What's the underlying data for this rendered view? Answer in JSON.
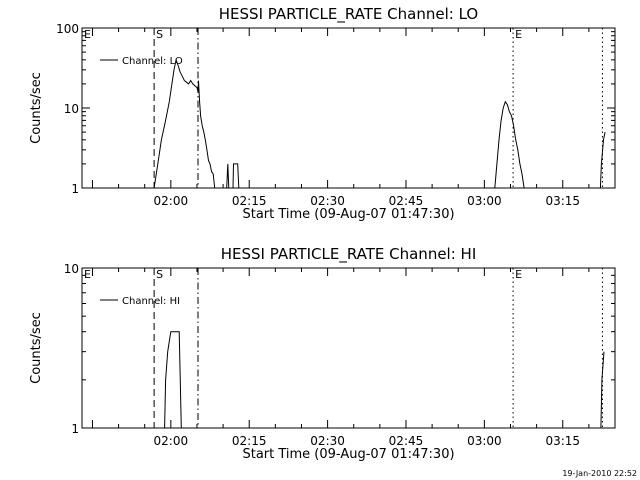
{
  "window": {
    "timestamp": "19-Jan-2010 22:52"
  },
  "chart_data": [
    {
      "type": "line",
      "title": "HESSI PARTICLE_RATE Channel: LO",
      "xlabel": "Start Time (09-Aug-07 01:47:30)",
      "ylabel": "Counts/sec",
      "yscale": "log",
      "ylim": [
        1,
        100
      ],
      "xlim_minutes": [
        -32,
        70
      ],
      "x_ticks": [
        {
          "t": -15,
          "label": "02:00"
        },
        {
          "t": 0,
          "label": "02:15"
        },
        {
          "t": 15,
          "label": "02:30"
        },
        {
          "t": 30,
          "label": "02:45"
        },
        {
          "t": 45,
          "label": "03:00"
        },
        {
          "t": 60,
          "label": "03:15"
        }
      ],
      "y_ticks": [
        {
          "v": 1,
          "label": "1"
        },
        {
          "v": 10,
          "label": "10"
        },
        {
          "v": 100,
          "label": "100"
        }
      ],
      "legend": {
        "position": "top-left",
        "entries": [
          "Channel: LO"
        ]
      },
      "markers": [
        {
          "t": -32,
          "label": "E",
          "style": "solid"
        },
        {
          "t": -18.2,
          "label": "S",
          "style": "dashed"
        },
        {
          "t": -9.8,
          "label": "",
          "style": "dashdot"
        },
        {
          "t": 50.5,
          "label": "E",
          "style": "dotted"
        },
        {
          "t": 67.6,
          "label": "",
          "style": "dotted"
        }
      ],
      "series": [
        {
          "name": "Channel: LO",
          "segments": [
            [
              [
                -18.2,
                1
              ],
              [
                -17.5,
                2
              ],
              [
                -16.8,
                4
              ],
              [
                -16,
                7
              ],
              [
                -15.3,
                12
              ],
              [
                -14.8,
                20
              ],
              [
                -14.4,
                30
              ],
              [
                -14,
                40
              ],
              [
                -13.6,
                34
              ],
              [
                -13.2,
                28
              ],
              [
                -12.8,
                25
              ],
              [
                -12.4,
                22
              ],
              [
                -12,
                21
              ],
              [
                -11.6,
                20
              ],
              [
                -11.2,
                22
              ],
              [
                -10.8,
                20
              ],
              [
                -10.4,
                19
              ],
              [
                -10,
                18
              ],
              [
                -9.8,
                16
              ],
              [
                -9.7,
                22
              ],
              [
                -9.5,
                12
              ],
              [
                -9.3,
                8
              ],
              [
                -9,
                6
              ],
              [
                -8.7,
                5
              ],
              [
                -8.4,
                4
              ],
              [
                -8.1,
                3
              ],
              [
                -7.8,
                2.2
              ],
              [
                -7.5,
                2
              ],
              [
                -7.2,
                1.6
              ],
              [
                -6.9,
                1.5
              ],
              [
                -6.6,
                1
              ]
            ],
            [
              [
                -4.3,
                1
              ],
              [
                -4.1,
                2
              ],
              [
                -3.9,
                1
              ]
            ],
            [
              [
                -3.1,
                1
              ],
              [
                -3.0,
                2
              ],
              [
                -2.2,
                2
              ],
              [
                -2.0,
                1
              ]
            ],
            [
              [
                47.0,
                1
              ],
              [
                47.4,
                2
              ],
              [
                47.8,
                4
              ],
              [
                48.2,
                7
              ],
              [
                48.6,
                10
              ],
              [
                49.0,
                12
              ],
              [
                49.4,
                11
              ],
              [
                49.8,
                9
              ],
              [
                50.2,
                8
              ],
              [
                50.6,
                6
              ],
              [
                51.0,
                4
              ],
              [
                51.4,
                3
              ],
              [
                51.8,
                2
              ],
              [
                52.2,
                1.5
              ],
              [
                52.6,
                1
              ]
            ],
            [
              [
                67.2,
                1
              ],
              [
                67.4,
                2
              ],
              [
                67.8,
                4
              ],
              [
                68.1,
                5
              ]
            ]
          ]
        }
      ]
    },
    {
      "type": "line",
      "title": "HESSI PARTICLE_RATE Channel: HI",
      "xlabel": "Start Time (09-Aug-07 01:47:30)",
      "ylabel": "Counts/sec",
      "yscale": "log",
      "ylim": [
        1,
        10
      ],
      "xlim_minutes": [
        -32,
        70
      ],
      "x_ticks": [
        {
          "t": -15,
          "label": "02:00"
        },
        {
          "t": 0,
          "label": "02:15"
        },
        {
          "t": 15,
          "label": "02:30"
        },
        {
          "t": 30,
          "label": "02:45"
        },
        {
          "t": 45,
          "label": "03:00"
        },
        {
          "t": 60,
          "label": "03:15"
        }
      ],
      "y_ticks": [
        {
          "v": 1,
          "label": "1"
        },
        {
          "v": 10,
          "label": "10"
        }
      ],
      "legend": {
        "position": "top-left",
        "entries": [
          "Channel: HI"
        ]
      },
      "markers": [
        {
          "t": -32,
          "label": "E",
          "style": "solid"
        },
        {
          "t": -18.2,
          "label": "S",
          "style": "dashed"
        },
        {
          "t": -9.8,
          "label": "",
          "style": "dashdot"
        },
        {
          "t": 50.5,
          "label": "E",
          "style": "dotted"
        },
        {
          "t": 67.6,
          "label": "",
          "style": "dotted"
        }
      ],
      "series": [
        {
          "name": "Channel: HI",
          "segments": [
            [
              [
                -16.2,
                1
              ],
              [
                -16.0,
                2
              ],
              [
                -15.6,
                3
              ],
              [
                -15.0,
                4
              ],
              [
                -13.4,
                4
              ],
              [
                -13.0,
                1
              ]
            ],
            [
              [
                67.3,
                1
              ],
              [
                67.5,
                2
              ],
              [
                67.9,
                3
              ]
            ]
          ]
        }
      ]
    }
  ]
}
